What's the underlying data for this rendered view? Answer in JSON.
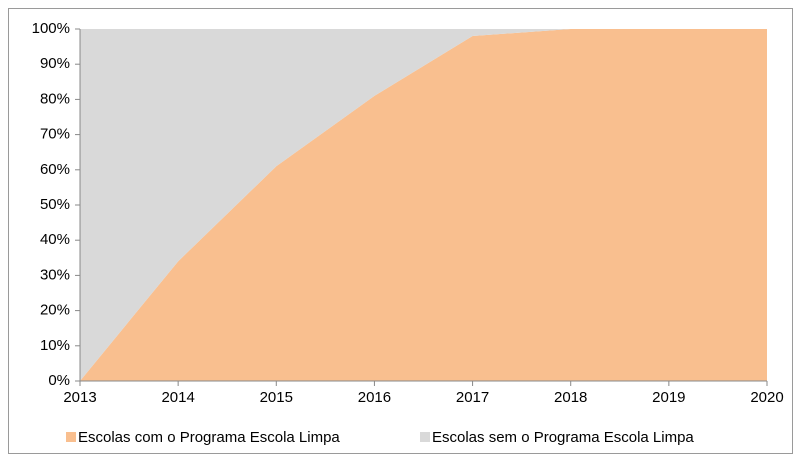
{
  "chart_data": {
    "type": "stacked_area",
    "x": [
      2013,
      2014,
      2015,
      2016,
      2017,
      2018,
      2019,
      2020
    ],
    "xlim": [
      2013,
      2020
    ],
    "xticks": [
      2013,
      2014,
      2015,
      2016,
      2017,
      2018,
      2019,
      2020
    ],
    "series": [
      {
        "name": "Escolas com o Programa Escola Limpa",
        "color": "#f9bf8f",
        "values": [
          0,
          34,
          61,
          81,
          98,
          100,
          100,
          100
        ]
      },
      {
        "name": "Escolas sem o Programa Escola Limpa",
        "color": "#d9d9d9",
        "values": [
          100,
          66,
          39,
          19,
          2,
          0,
          0,
          0
        ]
      }
    ],
    "ylim": [
      0,
      100
    ],
    "yticks": [
      {
        "value": 0,
        "label": "0%"
      },
      {
        "value": 10,
        "label": "10%"
      },
      {
        "value": 20,
        "label": "20%"
      },
      {
        "value": 30,
        "label": "30%"
      },
      {
        "value": 40,
        "label": "40%"
      },
      {
        "value": 50,
        "label": "50%"
      },
      {
        "value": 60,
        "label": "60%"
      },
      {
        "value": 70,
        "label": "70%"
      },
      {
        "value": 80,
        "label": "80%"
      },
      {
        "value": 90,
        "label": "90%"
      },
      {
        "value": 100,
        "label": "100%"
      }
    ],
    "legend": "bottom"
  }
}
